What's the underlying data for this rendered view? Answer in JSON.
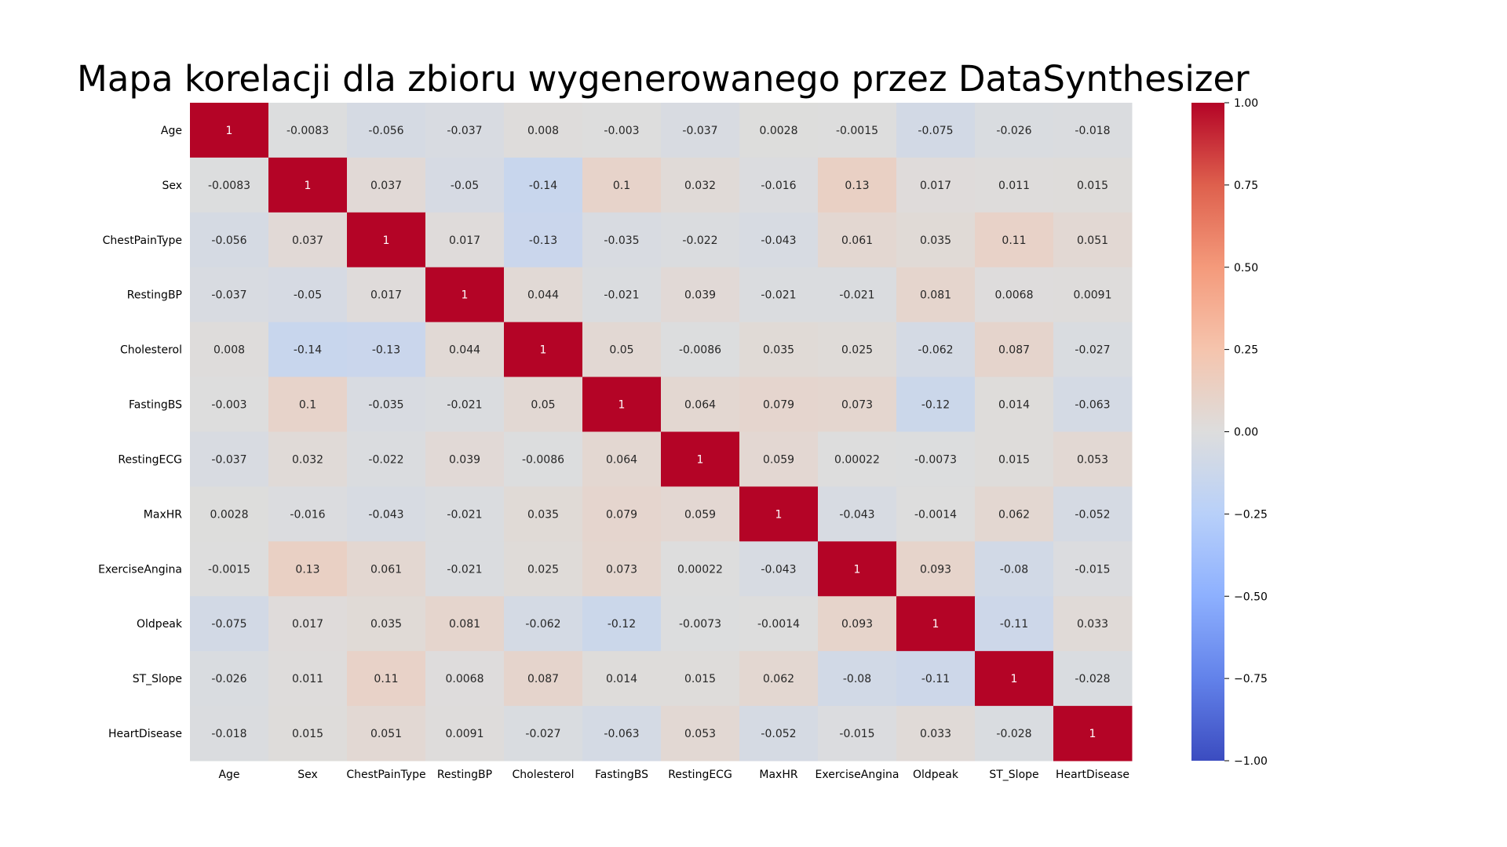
{
  "chart_data": {
    "type": "heatmap",
    "title": "Mapa korelacji dla zbioru wygenerowanego przez DataSynthesizer",
    "variables": [
      "Age",
      "Sex",
      "ChestPainType",
      "RestingBP",
      "Cholesterol",
      "FastingBS",
      "RestingECG",
      "MaxHR",
      "ExerciseAngina",
      "Oldpeak",
      "ST_Slope",
      "HeartDisease"
    ],
    "values": [
      [
        1,
        -0.0083,
        -0.056,
        -0.037,
        0.008,
        -0.003,
        -0.037,
        0.0028,
        -0.0015,
        -0.075,
        -0.026,
        -0.018
      ],
      [
        -0.0083,
        1,
        0.037,
        -0.05,
        -0.14,
        0.1,
        0.032,
        -0.016,
        0.13,
        0.017,
        0.011,
        0.015
      ],
      [
        -0.056,
        0.037,
        1,
        0.017,
        -0.13,
        -0.035,
        -0.022,
        -0.043,
        0.061,
        0.035,
        0.11,
        0.051
      ],
      [
        -0.037,
        -0.05,
        0.017,
        1,
        0.044,
        -0.021,
        0.039,
        -0.021,
        -0.021,
        0.081,
        0.0068,
        0.0091
      ],
      [
        0.008,
        -0.14,
        -0.13,
        0.044,
        1,
        0.05,
        -0.0086,
        0.035,
        0.025,
        -0.062,
        0.087,
        -0.027
      ],
      [
        -0.003,
        0.1,
        -0.035,
        -0.021,
        0.05,
        1,
        0.064,
        0.079,
        0.073,
        -0.12,
        0.014,
        -0.063
      ],
      [
        -0.037,
        0.032,
        -0.022,
        0.039,
        -0.0086,
        0.064,
        1,
        0.059,
        0.00022,
        -0.0073,
        0.015,
        0.053
      ],
      [
        0.0028,
        -0.016,
        -0.043,
        -0.021,
        0.035,
        0.079,
        0.059,
        1,
        -0.043,
        -0.0014,
        0.062,
        -0.052
      ],
      [
        -0.0015,
        0.13,
        0.061,
        -0.021,
        0.025,
        0.073,
        0.00022,
        -0.043,
        1,
        0.093,
        -0.08,
        -0.015
      ],
      [
        -0.075,
        0.017,
        0.035,
        0.081,
        -0.062,
        -0.12,
        -0.0073,
        -0.0014,
        0.093,
        1,
        -0.11,
        0.033
      ],
      [
        -0.026,
        0.011,
        0.11,
        0.0068,
        0.087,
        0.014,
        0.015,
        0.062,
        -0.08,
        -0.11,
        1,
        -0.028
      ],
      [
        -0.018,
        0.015,
        0.051,
        0.0091,
        -0.027,
        -0.063,
        0.053,
        -0.052,
        -0.015,
        0.033,
        -0.028,
        1
      ]
    ],
    "value_range": [
      -1.0,
      1.0
    ],
    "colormap": "coolwarm",
    "colorbar_ticks": [
      "1.00",
      "0.75",
      "0.50",
      "0.25",
      "0.00",
      "−0.25",
      "−0.50",
      "−0.75",
      "−1.00"
    ],
    "colorbar_tick_values": [
      1.0,
      0.75,
      0.5,
      0.25,
      0.0,
      -0.25,
      -0.5,
      -0.75,
      -1.0
    ],
    "annotated": true,
    "legend": "colorbar-right"
  }
}
